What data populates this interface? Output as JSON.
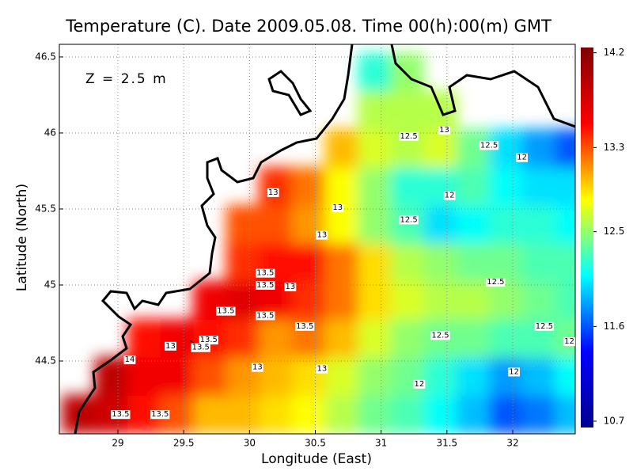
{
  "chart_data": {
    "type": "map",
    "title": "Temperature (C). Date 2009.05.08. Time 00(h):00(m) GMT",
    "annotation": "Z = 2.5 m",
    "xlabel": "Longitude (East)",
    "ylabel": "Latitude (North)",
    "xlim": [
      28.555,
      32.475
    ],
    "ylim": [
      44.021,
      46.583
    ],
    "xticks": [
      29,
      29.5,
      30,
      30.5,
      31,
      31.5,
      32
    ],
    "yticks": [
      44.5,
      45,
      45.5,
      46,
      46.5
    ],
    "grid": true,
    "colormap": [
      "#00008f",
      "#0000ff",
      "#00ffff",
      "#ffff00",
      "#ff0000",
      "#800000"
    ],
    "colorbar": {
      "lim": [
        10.64,
        14.25
      ],
      "ticks": [
        14.2,
        13.3,
        12.5,
        11.6,
        10.7
      ]
    },
    "field": {
      "lon": [
        28.7,
        28.95,
        29.2,
        29.45,
        29.7,
        29.95,
        30.2,
        30.45,
        30.7,
        30.95,
        31.2,
        31.45,
        31.7,
        31.95,
        32.2,
        32.45
      ],
      "lat": [
        44.15,
        44.4,
        44.65,
        44.9,
        45.15,
        45.4,
        45.65,
        45.9,
        46.15,
        46.4
      ],
      "values": [
        [
          13.9,
          13.8,
          13.5,
          13.3,
          13.0,
          13.0,
          12.9,
          12.8,
          12.6,
          12.4,
          12.3,
          12.1,
          11.9,
          11.6,
          11.7,
          11.9
        ],
        [
          null,
          13.9,
          13.6,
          13.6,
          13.3,
          13.1,
          13.0,
          12.9,
          12.7,
          12.5,
          12.4,
          12.2,
          12.0,
          11.8,
          11.9,
          12.1
        ],
        [
          null,
          null,
          13.5,
          13.6,
          13.5,
          13.4,
          13.1,
          13.2,
          13.0,
          12.7,
          12.5,
          12.4,
          12.4,
          12.3,
          12.3,
          12.4
        ],
        [
          null,
          null,
          null,
          null,
          13.6,
          13.7,
          13.6,
          13.4,
          13.2,
          12.9,
          12.7,
          12.6,
          12.6,
          12.5,
          12.4,
          12.3
        ],
        [
          null,
          null,
          null,
          null,
          null,
          13.4,
          13.5,
          13.5,
          13.2,
          12.9,
          12.6,
          12.5,
          12.4,
          12.4,
          12.3,
          12.3
        ],
        [
          null,
          null,
          null,
          null,
          null,
          13.3,
          13.3,
          13.1,
          12.8,
          12.5,
          12.3,
          12.0,
          12.1,
          12.2,
          12.2,
          12.1
        ],
        [
          null,
          null,
          null,
          null,
          null,
          null,
          13.4,
          13.2,
          12.8,
          12.5,
          12.2,
          12.2,
          12.3,
          12.1,
          12.0,
          12.0
        ],
        [
          null,
          null,
          null,
          null,
          null,
          null,
          null,
          null,
          13.0,
          12.7,
          12.6,
          12.7,
          12.4,
          12.0,
          11.8,
          11.6
        ],
        [
          null,
          null,
          null,
          null,
          null,
          null,
          null,
          null,
          null,
          12.6,
          12.6,
          12.6,
          null,
          null,
          null,
          null
        ],
        [
          null,
          null,
          null,
          null,
          null,
          null,
          null,
          null,
          null,
          12.2,
          12.5,
          null,
          null,
          null,
          null,
          null
        ]
      ]
    },
    "contour_labels": [
      {
        "lon": 30.18,
        "lat": 45.61,
        "value": 13
      },
      {
        "lon": 30.67,
        "lat": 45.51,
        "value": 13
      },
      {
        "lon": 30.55,
        "lat": 45.33,
        "value": 13
      },
      {
        "lon": 30.12,
        "lat": 45.08,
        "value": 13.5
      },
      {
        "lon": 30.12,
        "lat": 45.0,
        "value": 13.5
      },
      {
        "lon": 30.31,
        "lat": 44.99,
        "value": 13
      },
      {
        "lon": 29.82,
        "lat": 44.83,
        "value": 13.5
      },
      {
        "lon": 30.12,
        "lat": 44.8,
        "value": 13.5
      },
      {
        "lon": 30.42,
        "lat": 44.73,
        "value": 13.5
      },
      {
        "lon": 29.69,
        "lat": 44.64,
        "value": 13.5
      },
      {
        "lon": 29.63,
        "lat": 44.59,
        "value": 13.5
      },
      {
        "lon": 29.4,
        "lat": 44.6,
        "value": 13
      },
      {
        "lon": 29.09,
        "lat": 44.51,
        "value": 14
      },
      {
        "lon": 30.06,
        "lat": 44.46,
        "value": 13
      },
      {
        "lon": 30.55,
        "lat": 44.45,
        "value": 13
      },
      {
        "lon": 29.02,
        "lat": 44.15,
        "value": 13.5
      },
      {
        "lon": 29.32,
        "lat": 44.15,
        "value": 13.5
      },
      {
        "lon": 31.21,
        "lat": 45.98,
        "value": 12.5
      },
      {
        "lon": 31.48,
        "lat": 46.02,
        "value": 13
      },
      {
        "lon": 31.82,
        "lat": 45.92,
        "value": 12.5
      },
      {
        "lon": 32.07,
        "lat": 45.84,
        "value": 12
      },
      {
        "lon": 31.52,
        "lat": 45.59,
        "value": 12
      },
      {
        "lon": 31.21,
        "lat": 45.43,
        "value": 12.5
      },
      {
        "lon": 31.87,
        "lat": 45.02,
        "value": 12.5
      },
      {
        "lon": 32.24,
        "lat": 44.73,
        "value": 12.5
      },
      {
        "lon": 32.43,
        "lat": 44.63,
        "value": 12
      },
      {
        "lon": 31.45,
        "lat": 44.67,
        "value": 12.5
      },
      {
        "lon": 32.01,
        "lat": 44.43,
        "value": 12
      },
      {
        "lon": 31.29,
        "lat": 44.35,
        "value": 12
      }
    ]
  }
}
